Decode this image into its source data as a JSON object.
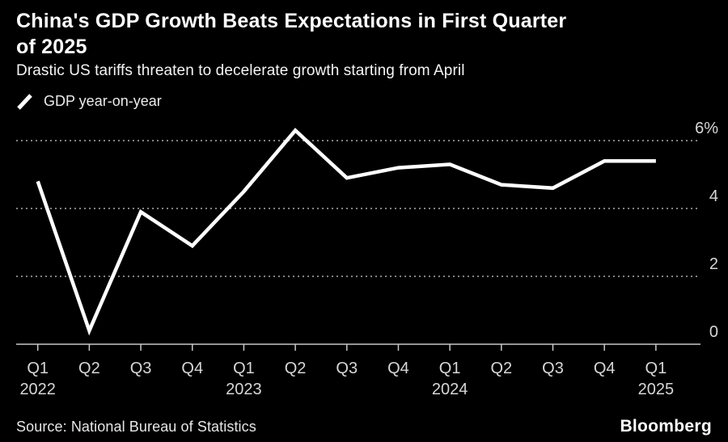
{
  "header": {
    "title_lines": [
      "China's GDP Growth Beats Expectations in First Quarter",
      "of 2025"
    ],
    "subtitle": "Drastic US tariffs threaten to decelerate growth starting from April"
  },
  "legend": {
    "label": "GDP year-on-year"
  },
  "chart_data": {
    "type": "line",
    "title": "China's GDP Growth Beats Expectations in First Quarter of 2025",
    "subtitle": "Drastic US tariffs threaten to decelerate growth starting from April",
    "legend_entries": [
      "GDP year-on-year"
    ],
    "legend_position": "top-left",
    "x": [
      "Q1 2022",
      "Q2 2022",
      "Q3 2022",
      "Q4 2022",
      "Q1 2023",
      "Q2 2023",
      "Q3 2023",
      "Q4 2023",
      "Q1 2024",
      "Q2 2024",
      "Q3 2024",
      "Q4 2024",
      "Q1 2025"
    ],
    "x_quarter_labels": [
      "Q1",
      "Q2",
      "Q3",
      "Q4",
      "Q1",
      "Q2",
      "Q3",
      "Q4",
      "Q1",
      "Q2",
      "Q3",
      "Q4",
      "Q1"
    ],
    "x_year_labels": [
      {
        "index": 0,
        "label": "2022"
      },
      {
        "index": 4,
        "label": "2023"
      },
      {
        "index": 8,
        "label": "2024"
      },
      {
        "index": 12,
        "label": "2025"
      }
    ],
    "series": [
      {
        "name": "GDP year-on-year",
        "values": [
          4.8,
          0.4,
          3.9,
          2.9,
          4.5,
          6.3,
          4.9,
          5.2,
          5.3,
          4.7,
          4.6,
          5.4,
          5.4
        ]
      }
    ],
    "unit": "percent",
    "y_ticks": [
      {
        "value": 0,
        "label": "0"
      },
      {
        "value": 2,
        "label": "2"
      },
      {
        "value": 4,
        "label": "4"
      },
      {
        "value": 6,
        "label": "6%"
      }
    ],
    "grid_values": [
      2,
      4,
      6
    ],
    "ylim": [
      0,
      6.6
    ],
    "grid": "horizontal dashed, zero baseline solid",
    "colors": {
      "background": "#000000",
      "line": "#ffffff",
      "grid": "#828282",
      "axis": "#c8c8c8",
      "tick_label": "#d6d6d6"
    }
  },
  "footer": {
    "source": "Source: National Bureau of Statistics",
    "brand": "Bloomberg"
  }
}
